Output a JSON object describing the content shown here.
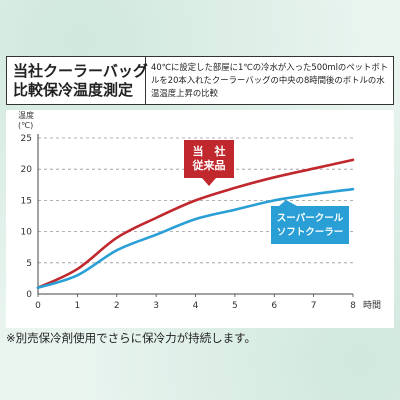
{
  "title": {
    "line1": "当社クーラーバッグ",
    "line2": "比較保冷温度測定"
  },
  "description": "40℃に設定した部屋に1℃の冷水が入った500mlのペットボトルを20本入れたクーラーバッグの中央の8時間後のボトルの水温温度上昇の比較",
  "note": "※別売保冷剤使用でさらに保冷力が持続します。",
  "chart_data": {
    "type": "line",
    "x": [
      0,
      1,
      2,
      3,
      4,
      5,
      6,
      7,
      8
    ],
    "xlim": [
      0,
      8
    ],
    "ylim": [
      0,
      25
    ],
    "xticks": [
      "0",
      "1",
      "2",
      "3",
      "4",
      "5",
      "6",
      "7",
      "8"
    ],
    "yticks": [
      "0",
      "5",
      "10",
      "15",
      "20",
      "25"
    ],
    "xlabel": "時間",
    "ylabel_line1": "温度",
    "ylabel_line2": "(℃)",
    "grid": "dashed-horizontal",
    "series": [
      {
        "name_lines": [
          "当　社",
          "従来品"
        ],
        "color": "#c0282d",
        "values": [
          1,
          4,
          9,
          12.2,
          15,
          17,
          18.7,
          20.1,
          21.5
        ]
      },
      {
        "name_lines": [
          "スーパークール",
          "ソフトクーラー"
        ],
        "color": "#2a9fd6",
        "values": [
          1,
          3,
          7,
          9.5,
          12,
          13.5,
          15,
          16,
          16.8
        ]
      }
    ]
  }
}
